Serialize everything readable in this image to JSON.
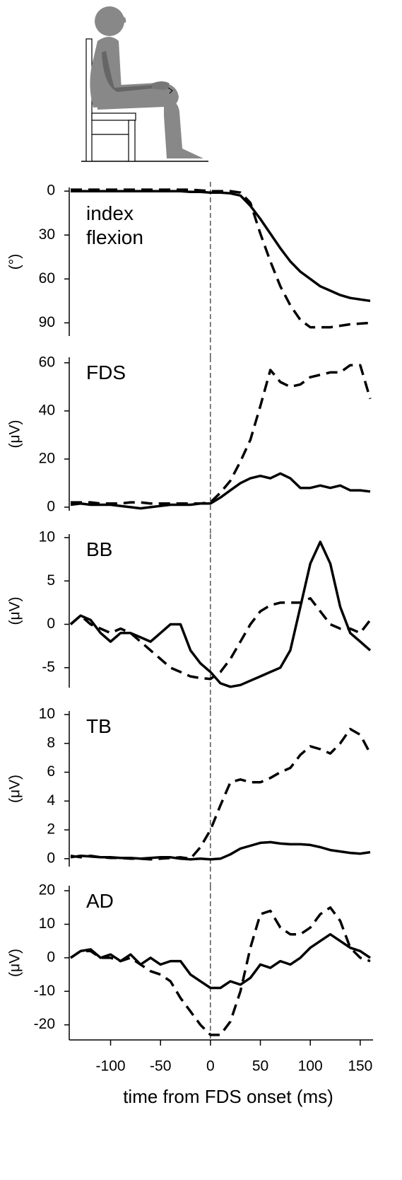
{
  "chart_data": [
    {
      "type": "line",
      "annotation": "index flexion",
      "ylabel": "(°)",
      "y_inverted": true,
      "x": [
        -140,
        -130,
        -120,
        -110,
        -100,
        -90,
        -80,
        -70,
        -60,
        -50,
        -40,
        -30,
        -20,
        -10,
        0,
        10,
        20,
        30,
        40,
        50,
        60,
        70,
        80,
        90,
        100,
        110,
        120,
        130,
        140,
        150,
        160
      ],
      "xlim": [
        -140,
        160
      ],
      "ylim": [
        -2.5,
        99
      ],
      "yticks": [
        0,
        30,
        60,
        90
      ],
      "vline": 0,
      "series": [
        {
          "color": "#000000",
          "dashed": false,
          "values": [
            0,
            0,
            0,
            0,
            0,
            0,
            0,
            0,
            0,
            0,
            0,
            0,
            0.5,
            0.5,
            1,
            1,
            1.5,
            3,
            10,
            19,
            29,
            39,
            48,
            55,
            60,
            65,
            68,
            71,
            73,
            74,
            75
          ]
        },
        {
          "color": "#000000",
          "dashed": true,
          "values": [
            -1,
            -1,
            -1,
            -1,
            -1,
            -1,
            -1,
            -1,
            -1,
            -1,
            -1,
            -1,
            -1,
            -0.5,
            0,
            0,
            0,
            1,
            8,
            29,
            48,
            65,
            78,
            88,
            93,
            93,
            93,
            92,
            91,
            90.5,
            90
          ]
        }
      ]
    },
    {
      "type": "line",
      "annotation": "FDS",
      "ylabel": "(μV)",
      "x": [
        -140,
        -130,
        -120,
        -110,
        -100,
        -90,
        -80,
        -70,
        -60,
        -50,
        -40,
        -30,
        -20,
        -10,
        0,
        10,
        20,
        30,
        40,
        50,
        60,
        70,
        80,
        90,
        100,
        110,
        120,
        130,
        140,
        150,
        160
      ],
      "xlim": [
        -140,
        160
      ],
      "ylim": [
        -1.5,
        62.3
      ],
      "yticks": [
        0,
        20,
        40,
        60
      ],
      "vline": 0,
      "series": [
        {
          "color": "#000000",
          "dashed": false,
          "values": [
            1,
            1.5,
            1,
            1,
            1,
            0.5,
            0,
            -0.5,
            0,
            0.5,
            1,
            1,
            1,
            1.5,
            1.5,
            4,
            7,
            10,
            12,
            13,
            12,
            14,
            12,
            8,
            8,
            9,
            8,
            9,
            7,
            7,
            6.5
          ]
        },
        {
          "color": "#000000",
          "dashed": true,
          "values": [
            2,
            2,
            2,
            1.5,
            1.5,
            1.5,
            2,
            2,
            1.5,
            1.5,
            1.5,
            1.5,
            1.5,
            1.5,
            2,
            6,
            11,
            19,
            28,
            42,
            57,
            52,
            50,
            51,
            54,
            55,
            56,
            56,
            59,
            59,
            45
          ]
        }
      ]
    },
    {
      "type": "line",
      "annotation": "BB",
      "ylabel": "(μV)",
      "x": [
        -140,
        -130,
        -120,
        -110,
        -100,
        -90,
        -80,
        -70,
        -60,
        -50,
        -40,
        -30,
        -20,
        -10,
        0,
        10,
        20,
        30,
        40,
        50,
        60,
        70,
        80,
        90,
        100,
        110,
        120,
        130,
        140,
        150,
        160
      ],
      "xlim": [
        -140,
        160
      ],
      "ylim": [
        -7.3,
        10.4
      ],
      "yticks": [
        -5,
        0,
        5,
        10
      ],
      "vline": 0,
      "series": [
        {
          "color": "#000000",
          "dashed": false,
          "values": [
            0,
            1,
            0.5,
            -1,
            -2,
            -1,
            -1,
            -1.5,
            -2,
            -1,
            0,
            0,
            -3,
            -4.5,
            -5.5,
            -6.8,
            -7.2,
            -7,
            -6.5,
            -6,
            -5.5,
            -5,
            -3,
            2,
            7,
            9.5,
            7,
            2,
            -1,
            -2,
            -3
          ]
        },
        {
          "color": "#000000",
          "dashed": true,
          "values": [
            0,
            1,
            0,
            -0.5,
            -1,
            -0.5,
            -1,
            -2,
            -3,
            -4,
            -5,
            -5.5,
            -6,
            -6.2,
            -6.3,
            -5.5,
            -4,
            -2,
            0,
            1.5,
            2.2,
            2.5,
            2.5,
            2.5,
            3,
            1.5,
            0,
            -0.5,
            -0.5,
            -1,
            0.5
          ]
        }
      ]
    },
    {
      "type": "line",
      "annotation": "TB",
      "ylabel": "(μV)",
      "x": [
        -140,
        -130,
        -120,
        -110,
        -100,
        -90,
        -80,
        -70,
        -60,
        -50,
        -40,
        -30,
        -20,
        -10,
        0,
        10,
        20,
        30,
        40,
        50,
        60,
        70,
        80,
        90,
        100,
        110,
        120,
        130,
        140,
        150,
        160
      ],
      "xlim": [
        -140,
        160
      ],
      "ylim": [
        -0.55,
        10.25
      ],
      "yticks": [
        0,
        2,
        4,
        6,
        8,
        10
      ],
      "vline": 0,
      "series": [
        {
          "color": "#000000",
          "dashed": false,
          "values": [
            0.1,
            0.2,
            0.15,
            0.1,
            0.1,
            0.05,
            0.05,
            0,
            0.05,
            0.1,
            0.1,
            0,
            -0.05,
            0,
            -0.05,
            0,
            0.3,
            0.7,
            0.9,
            1.1,
            1.15,
            1.05,
            1,
            1,
            0.95,
            0.8,
            0.6,
            0.5,
            0.4,
            0.35,
            0.45
          ]
        },
        {
          "color": "#000000",
          "dashed": true,
          "values": [
            0.2,
            0.1,
            0.2,
            0.1,
            0.05,
            0.05,
            0,
            0,
            -0.05,
            0,
            0.05,
            0.1,
            0,
            0.8,
            2,
            3.7,
            5.3,
            5.5,
            5.3,
            5.3,
            5.6,
            6,
            6.3,
            7.2,
            7.8,
            7.6,
            7.3,
            8,
            9,
            8.6,
            7.3
          ]
        }
      ]
    },
    {
      "type": "line",
      "annotation": "AD",
      "ylabel": "(μV)",
      "xlabel": "time from FDS onset (ms)",
      "x": [
        -140,
        -130,
        -120,
        -110,
        -100,
        -90,
        -80,
        -70,
        -60,
        -50,
        -40,
        -30,
        -20,
        -10,
        0,
        10,
        20,
        30,
        40,
        50,
        60,
        70,
        80,
        90,
        100,
        110,
        120,
        130,
        140,
        150,
        160
      ],
      "xlim": [
        -140,
        160
      ],
      "xticks": [
        -100,
        -50,
        0,
        50,
        100,
        150
      ],
      "ylim": [
        -24.5,
        21.5
      ],
      "yticks": [
        -20,
        -10,
        0,
        10,
        20
      ],
      "vline": 0,
      "series": [
        {
          "color": "#000000",
          "dashed": false,
          "values": [
            0,
            2,
            2.5,
            0,
            1,
            -1,
            1,
            -2,
            0,
            -2,
            -1,
            -1,
            -5,
            -7,
            -9,
            -9,
            -7,
            -8,
            -6,
            -2,
            -3,
            -1,
            -2,
            0,
            3,
            5,
            7,
            5,
            3,
            2,
            0
          ]
        },
        {
          "color": "#000000",
          "dashed": true,
          "values": [
            0,
            2,
            2,
            0,
            0,
            -1,
            0,
            -2,
            -4,
            -5,
            -7,
            -12,
            -16,
            -20,
            -23,
            -23,
            -19,
            -10,
            3,
            13,
            14,
            9,
            7,
            7,
            9,
            13,
            15,
            11,
            3,
            0,
            -1
          ]
        }
      ]
    }
  ]
}
